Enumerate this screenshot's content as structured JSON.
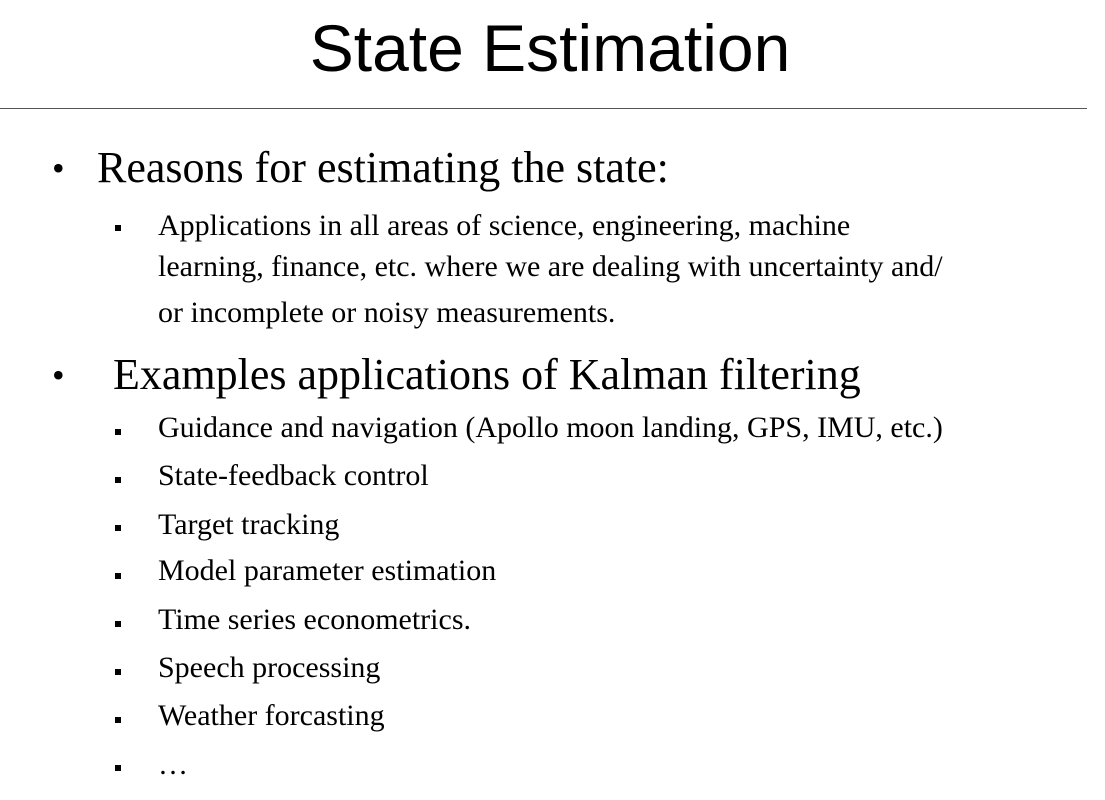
{
  "slide": {
    "title": "State Estimation",
    "bullets": [
      {
        "text": "Reasons for estimating the state:",
        "sub": [
          {
            "lines": [
              "Applications in all areas of science, engineering, machine",
              "learning, finance, etc. where we are dealing with uncertainty and/",
              "or incomplete or noisy measurements."
            ]
          }
        ]
      },
      {
        "text": "Examples applications of Kalman filtering",
        "sub": [
          {
            "text": "Guidance and navigation (Apollo moon landing, GPS, IMU, etc.)"
          },
          {
            "text": "State-feedback control"
          },
          {
            "text": "Target tracking"
          },
          {
            "text": "Model parameter estimation"
          },
          {
            "text": "Time series econometrics."
          },
          {
            "text": "Speech processing"
          },
          {
            "text": "Weather forcasting"
          },
          {
            "text": "…"
          }
        ]
      }
    ]
  }
}
